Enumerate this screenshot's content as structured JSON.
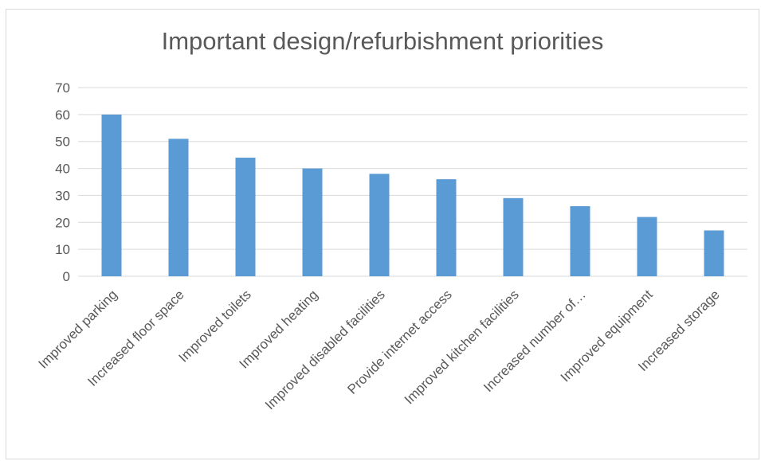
{
  "chart_data": {
    "type": "bar",
    "title": "Important design/refurbishment priorities",
    "xlabel": "",
    "ylabel": "",
    "categories": [
      "Improved parking",
      "Increased floor space",
      "Improved toilets",
      "Improved heating",
      "Improved disabled facilities",
      "Provide internet access",
      "Improved kitchen facilities",
      "Increased number of…",
      "Improved equipment",
      "Increased storage"
    ],
    "values": [
      60,
      51,
      44,
      40,
      38,
      36,
      29,
      26,
      22,
      17
    ],
    "ylim": [
      0,
      70
    ],
    "yticks": [
      0,
      10,
      20,
      30,
      40,
      50,
      60,
      70
    ],
    "grid": true,
    "legend": "none",
    "bar_color": "#5b9bd5",
    "grid_color": "#d9d9d9"
  }
}
